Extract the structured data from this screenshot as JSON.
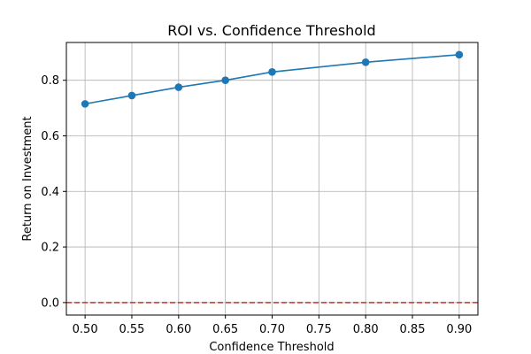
{
  "chart_data": {
    "type": "line",
    "title": "ROI vs. Confidence Threshold",
    "xlabel": "Confidence Threshold",
    "ylabel": "Return on Investment",
    "xlim": [
      0.48,
      0.92
    ],
    "ylim": [
      -0.045,
      0.936
    ],
    "xticks": [
      "0.50",
      "0.55",
      "0.60",
      "0.65",
      "0.70",
      "0.75",
      "0.80",
      "0.85",
      "0.90"
    ],
    "xtick_values": [
      0.5,
      0.55,
      0.6,
      0.65,
      0.7,
      0.75,
      0.8,
      0.85,
      0.9
    ],
    "yticks": [
      "0.0",
      "0.2",
      "0.4",
      "0.6",
      "0.8"
    ],
    "ytick_values": [
      0.0,
      0.2,
      0.4,
      0.6,
      0.8
    ],
    "grid": true,
    "series": [
      {
        "x": [
          0.5,
          0.55,
          0.6,
          0.65,
          0.7,
          0.8,
          0.9
        ],
        "y": [
          0.715,
          0.745,
          0.775,
          0.8,
          0.83,
          0.865,
          0.892
        ],
        "color": "#1f77b4",
        "marker": "circle"
      }
    ],
    "reference_lines": [
      {
        "orientation": "horizontal",
        "y": 0.0,
        "style": "dashed",
        "color": "#d62728"
      }
    ]
  }
}
